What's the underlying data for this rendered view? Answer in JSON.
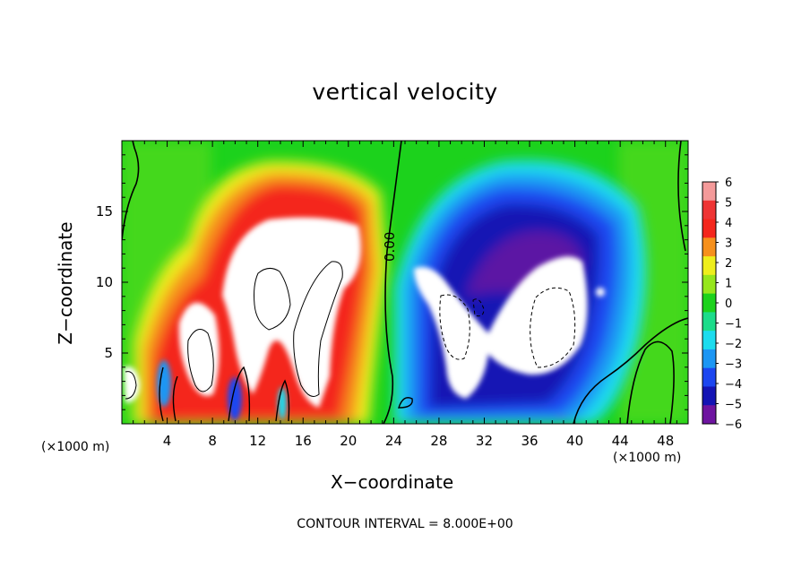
{
  "chart_data": {
    "type": "heatmap",
    "title": "vertical velocity",
    "xlabel": "X−coordinate",
    "ylabel": "Z−coordinate",
    "x_unit_label": "(×1000 m)",
    "note": "CONTOUR INTERVAL = 8.000E+00",
    "xlim": [
      0,
      50
    ],
    "ylim": [
      0,
      20
    ],
    "x_ticks": [
      4,
      8,
      12,
      16,
      20,
      24,
      28,
      32,
      36,
      40,
      44,
      48
    ],
    "y_ticks": [
      5,
      10,
      15
    ],
    "colorbar": {
      "levels": [
        6,
        5,
        4,
        3,
        2,
        1,
        0,
        -1,
        -2,
        -3,
        -4,
        -5,
        -6
      ],
      "labels": [
        "6",
        "5",
        "4",
        "3",
        "2",
        "1",
        "0",
        "−1",
        "−2",
        "−3",
        "−4",
        "−5",
        "−6"
      ],
      "colors": [
        "#f49a9a",
        "#ee3434",
        "#f4261c",
        "#f6901c",
        "#eeee1c",
        "#96e61c",
        "#1cd21c",
        "#1cdc8a",
        "#1cdcee",
        "#1c96f4",
        "#1c46f0",
        "#1414b4",
        "#6e14a0"
      ]
    },
    "contour_label": "0.00",
    "features": {
      "updraft_region": {
        "x_range": [
          0,
          23
        ],
        "peak": "> 6",
        "color": "#ffffff"
      },
      "downdraft_region": {
        "x_range": [
          26,
          44
        ],
        "peak": "< -6",
        "color": "#ffffff"
      },
      "background": {
        "value": 0,
        "color": "#1cd21c"
      }
    }
  }
}
